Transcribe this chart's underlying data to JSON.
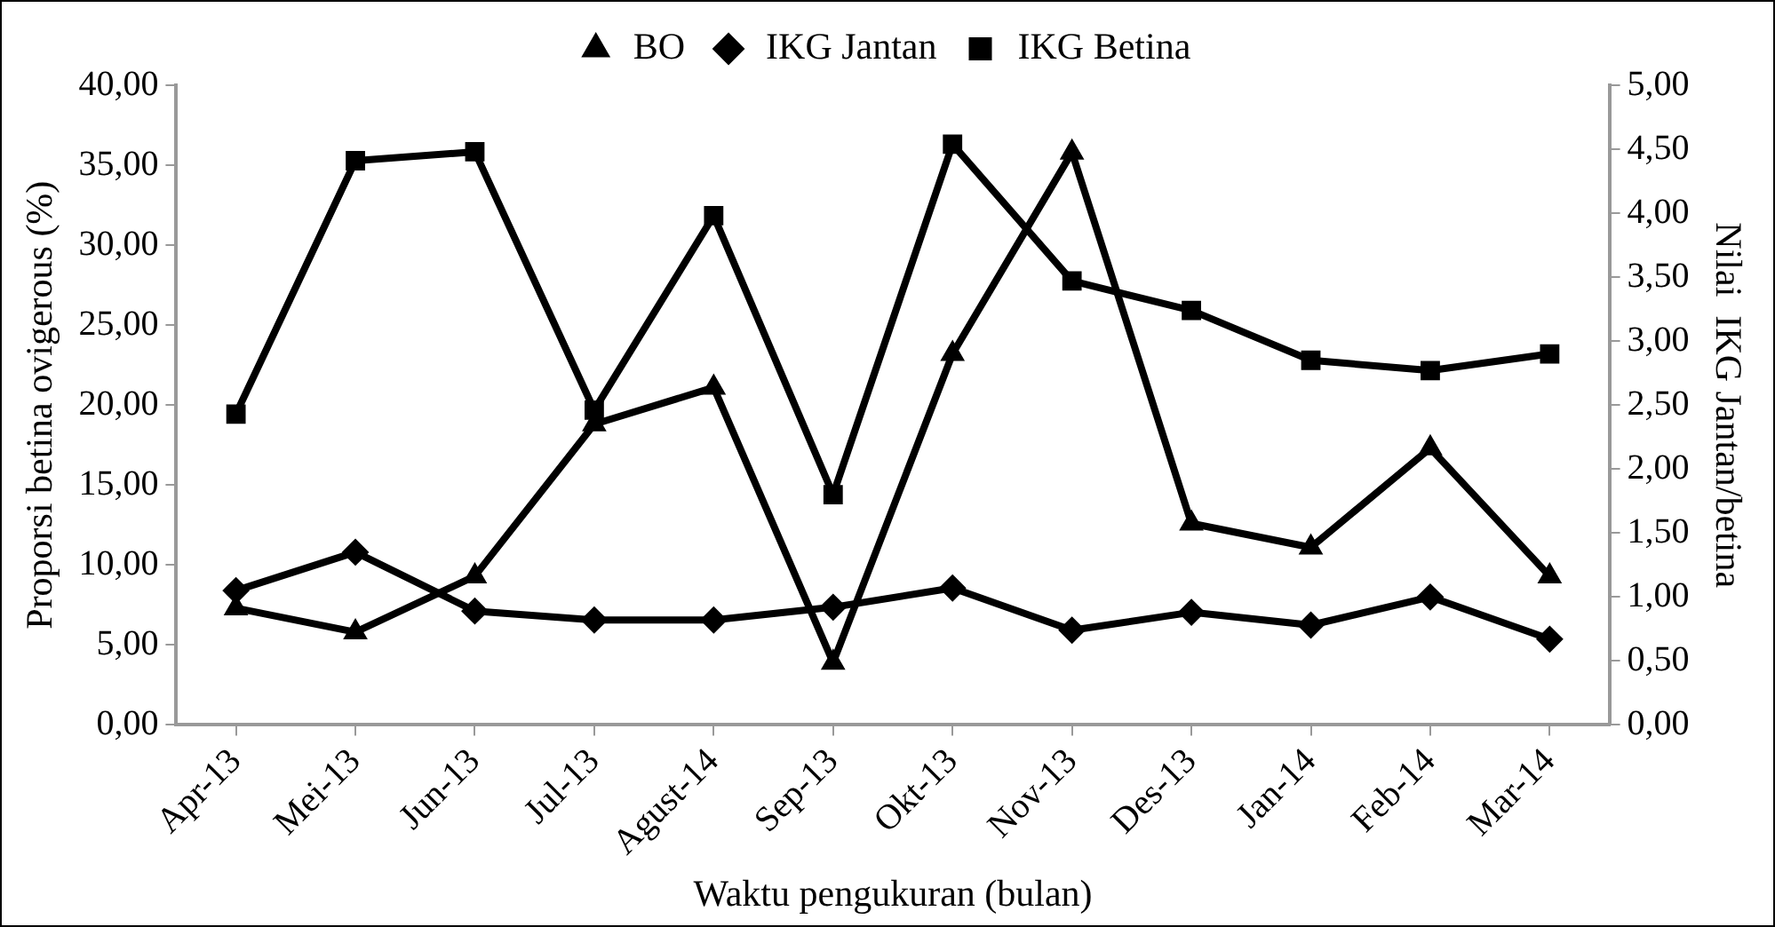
{
  "chart_data": {
    "type": "line",
    "xlabel": "Waktu pengukuran (bulan)",
    "ylabel": "Proporsi betina ovigerous (%)",
    "y2label": "Nilai  IKG Jantan/betina",
    "categories": [
      "Apr-13",
      "Mei-13",
      "Jun-13",
      "Jul-13",
      "Agust-14",
      "Sep-13",
      "Okt-13",
      "Nov-13",
      "Des-13",
      "Jan-14",
      "Feb-14",
      "Mar-14"
    ],
    "series": [
      {
        "name": "BO",
        "color": "#000000",
        "marker": "triangle",
        "values": [
          7.3,
          5.8,
          9.3,
          18.8,
          21.1,
          3.9,
          23.2,
          35.8,
          12.6,
          11.1,
          17.3,
          9.3
        ]
      },
      {
        "name": "IKG Jantan",
        "color": "#000000",
        "marker": "diamond",
        "axis": "y2",
        "values": [
          1.05,
          1.35,
          0.89,
          0.82,
          0.82,
          0.92,
          1.07,
          0.74,
          0.88,
          0.78,
          1.0,
          0.67
        ]
      },
      {
        "name": "IKG Betina",
        "color": "#000000",
        "marker": "square",
        "axis": "y2",
        "values": [
          2.43,
          4.41,
          4.48,
          2.46,
          3.98,
          1.8,
          4.54,
          3.47,
          3.24,
          2.85,
          2.77,
          2.9
        ]
      }
    ],
    "ylim": [
      0,
      40
    ],
    "yticks": [
      {
        "value": 0,
        "label": "0,00"
      },
      {
        "value": 5,
        "label": "5,00"
      },
      {
        "value": 10,
        "label": "10,00"
      },
      {
        "value": 15,
        "label": "15,00"
      },
      {
        "value": 20,
        "label": "20,00"
      },
      {
        "value": 25,
        "label": "25,00"
      },
      {
        "value": 30,
        "label": "30,00"
      },
      {
        "value": 35,
        "label": "35,00"
      },
      {
        "value": 40,
        "label": "40,00"
      }
    ],
    "y2lim": [
      0,
      5
    ],
    "y2ticks": [
      {
        "value": 0,
        "label": "0,00"
      },
      {
        "value": 0.5,
        "label": "0,50"
      },
      {
        "value": 1,
        "label": "1,00"
      },
      {
        "value": 1.5,
        "label": "1,50"
      },
      {
        "value": 2,
        "label": "2,00"
      },
      {
        "value": 2.5,
        "label": "2,50"
      },
      {
        "value": 3,
        "label": "3,00"
      },
      {
        "value": 3.5,
        "label": "3,50"
      },
      {
        "value": 4,
        "label": "4,00"
      },
      {
        "value": 4.5,
        "label": "4,50"
      },
      {
        "value": 5,
        "label": "5,00"
      }
    ],
    "grid": false,
    "legend": "top",
    "line_style": "solid"
  }
}
